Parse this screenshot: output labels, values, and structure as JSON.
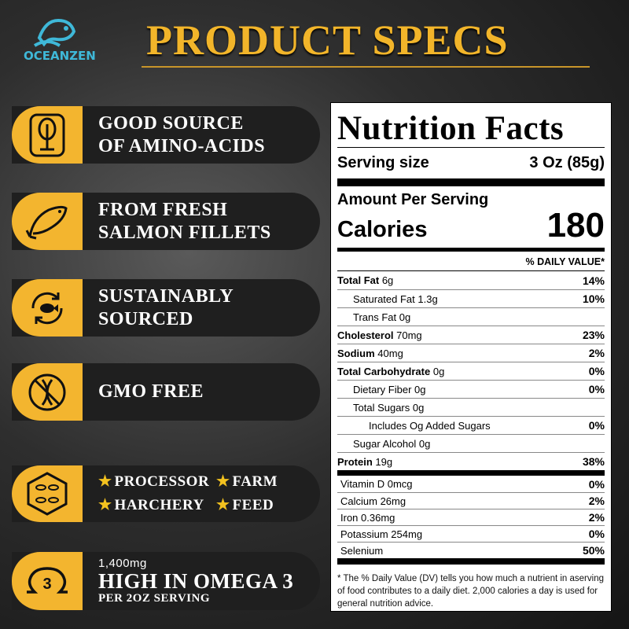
{
  "brand": {
    "logo_text": "OCEANZEN"
  },
  "header": {
    "title": "PRODUCT SPECS"
  },
  "features": [
    {
      "icon": "tree-icon",
      "lines": [
        "GOOD SOURCE",
        "OF AMINO-ACIDS"
      ]
    },
    {
      "icon": "salmon-icon",
      "lines": [
        "FROM FRESH",
        "SALMON FILLETS"
      ]
    },
    {
      "icon": "sustainable-fish-cycle-icon",
      "lines": [
        "SUSTAINABLY",
        "SOURCED"
      ]
    },
    {
      "icon": "gmo-free-icon",
      "lines": [
        "GMO FREE"
      ]
    },
    {
      "icon": "fish-hexagon-icon",
      "items": [
        "PROCESSOR",
        "FARM",
        "HARCHERY",
        "FEED"
      ]
    },
    {
      "icon": "omega-3-icon",
      "amount": "1,400mg",
      "title": "HIGH IN OMEGA 3",
      "subtitle": "PER 2OZ SERVING"
    }
  ],
  "nutrition": {
    "title": "Nutrition Facts",
    "serving_label": "Serving size",
    "serving_value": "3 Oz  (85g)",
    "amount_label": "Amount Per Serving",
    "calories_label": "Calories",
    "calories": "180",
    "dv_header": "% DAILY VALUE*",
    "rows": [
      {
        "b": "Total Fat",
        "a": "6g",
        "p": "14%"
      },
      {
        "b": "",
        "a": "Saturated Fat 1.3g",
        "p": "10%"
      },
      {
        "b": "",
        "a": "Trans Fat 0g",
        "p": ""
      },
      {
        "b": "Cholesterol",
        "a": "70mg",
        "p": "23%"
      },
      {
        "b": "Sodium",
        "a": "40mg",
        "p": "2%"
      },
      {
        "b": "Total Carbohydrate",
        "a": "0g",
        "p": "0%"
      },
      {
        "b": "",
        "a": "Dietary Fiber 0g",
        "p": "0%"
      },
      {
        "b": "",
        "a": "Total Sugars 0g",
        "p": ""
      },
      {
        "b": "",
        "a": "Includes Og Added Sugars",
        "p": "0%"
      },
      {
        "b": "",
        "a": "Sugar Alcohol 0g",
        "p": ""
      },
      {
        "b": "Protein",
        "a": "19g",
        "p": "38%"
      }
    ],
    "minerals": [
      {
        "a": "Vitamin D 0mcg",
        "p": "0%"
      },
      {
        "a": "Calcium 26mg",
        "p": "2%"
      },
      {
        "a": "Iron 0.36mg",
        "p": "2%"
      },
      {
        "a": "Potassium 254mg",
        "p": "0%"
      },
      {
        "a": "Selenium",
        "p": "50%"
      }
    ],
    "footnote": "* The % Daily Value (DV) tells you how much a nutrient in aserving of food contributes to a daily diet. 2,000 calories a day is used for general nutrition advice."
  },
  "colors": {
    "accent": "#f3b52f",
    "title_gold": "#f2b52a",
    "logo": "#3fb8d8",
    "pill": "#1f1f1f"
  }
}
